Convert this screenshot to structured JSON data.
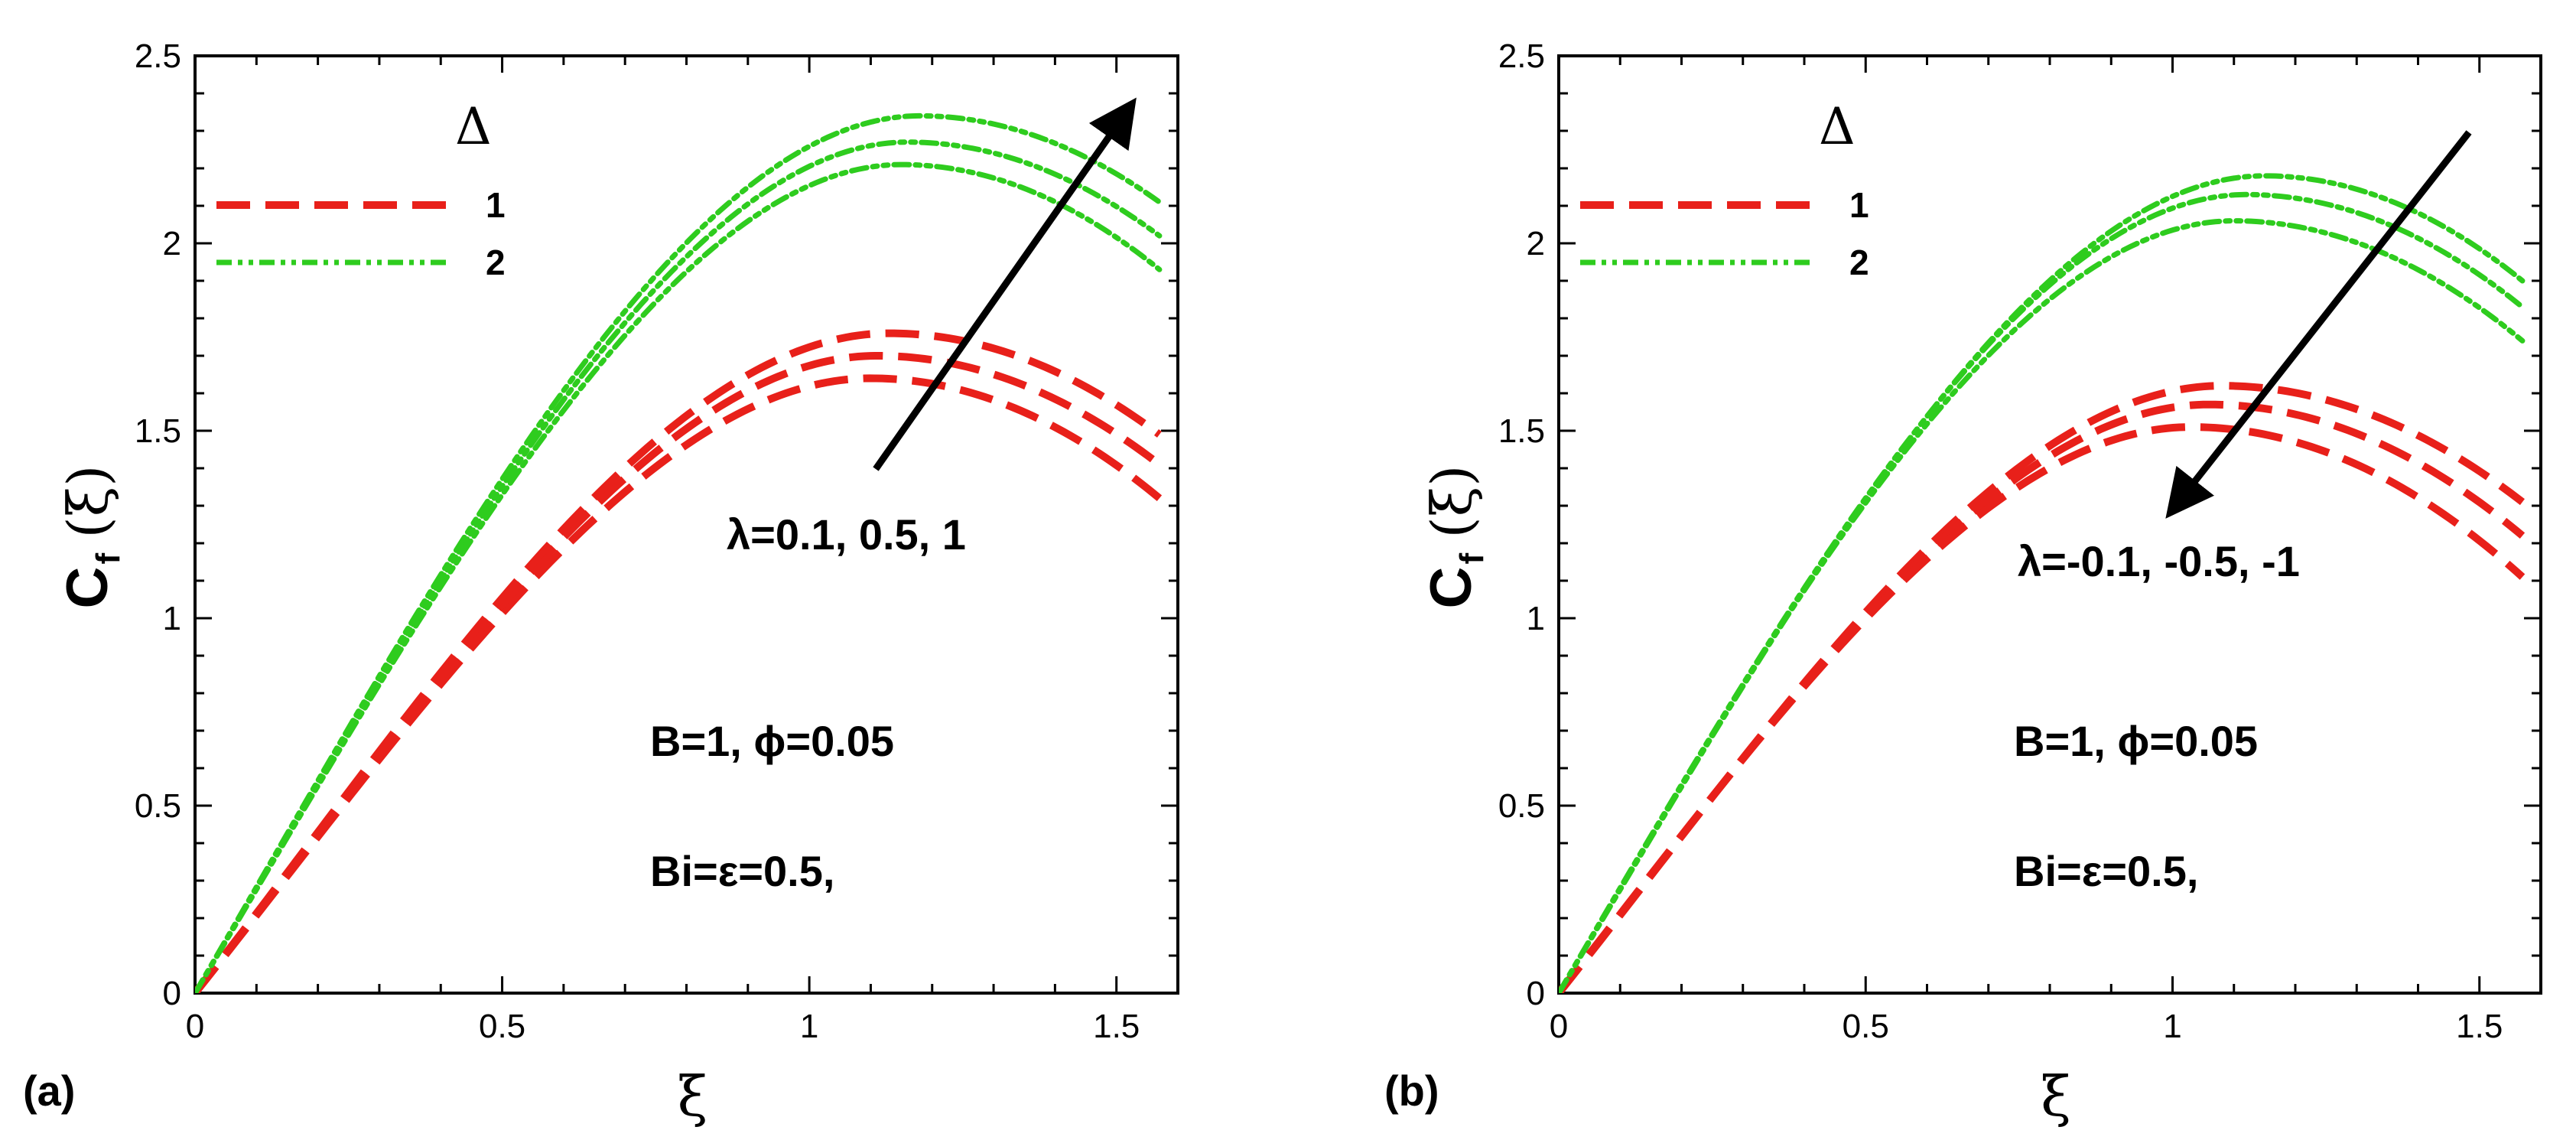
{
  "chart_data": [
    {
      "type": "line",
      "panel_label": "(a)",
      "xlabel": "ξ",
      "ylabel_main": "C",
      "ylabel_sub": "f",
      "ylabel_arg": "(ξ)",
      "xlim": [
        0,
        1.6
      ],
      "ylim": [
        0,
        2.5
      ],
      "xticks": [
        0,
        0.5,
        1,
        1.5
      ],
      "xtick_labels": [
        "0",
        "0.5",
        "1",
        "1.5"
      ],
      "yticks": [
        0,
        0.5,
        1,
        1.5,
        2,
        2.5
      ],
      "ytick_labels": [
        "0",
        "0.5",
        "1",
        "1.5",
        "2",
        "2.5"
      ],
      "legend": {
        "title": "Δ",
        "placement": "top-left",
        "entries": [
          {
            "label": "1",
            "style": "dashed",
            "color": "#e8201a"
          },
          {
            "label": "2",
            "style": "dash-dot-dot",
            "color": "#2ecc1e"
          }
        ]
      },
      "annotations": {
        "arrow_text": "λ=0.1, 0.5, 1",
        "arrow_direction": "up",
        "param_line1": "B=1, ϕ=0.05",
        "param_line2": "Bi=ε=0.5,"
      },
      "series": [
        {
          "name": "Δ=1, λ=0.1",
          "group": "1",
          "peak": 1.64,
          "peak_x": 1.1,
          "end": 1.32
        },
        {
          "name": "Δ=1, λ=0.5",
          "group": "1",
          "peak": 1.7,
          "peak_x": 1.11,
          "end": 1.41
        },
        {
          "name": "Δ=1, λ=1",
          "group": "1",
          "peak": 1.76,
          "peak_x": 1.13,
          "end": 1.49
        },
        {
          "name": "Δ=2, λ=0.1",
          "group": "2",
          "peak": 2.21,
          "peak_x": 1.15,
          "end": 1.93
        },
        {
          "name": "Δ=2, λ=0.5",
          "group": "2",
          "peak": 2.27,
          "peak_x": 1.16,
          "end": 2.02
        },
        {
          "name": "Δ=2, λ=1",
          "group": "2",
          "peak": 2.34,
          "peak_x": 1.18,
          "end": 2.11
        }
      ]
    },
    {
      "type": "line",
      "panel_label": "(b)",
      "xlabel": "ξ",
      "ylabel_main": "C",
      "ylabel_sub": "f",
      "ylabel_arg": "(ξ)",
      "xlim": [
        0,
        1.6
      ],
      "ylim": [
        0,
        2.5
      ],
      "xticks": [
        0,
        0.5,
        1,
        1.5
      ],
      "xtick_labels": [
        "0",
        "0.5",
        "1",
        "1.5"
      ],
      "yticks": [
        0,
        0.5,
        1,
        1.5,
        2,
        2.5
      ],
      "ytick_labels": [
        "0",
        "0.5",
        "1",
        "1.5",
        "2",
        "2.5"
      ],
      "legend": {
        "title": "Δ",
        "placement": "top-left",
        "entries": [
          {
            "label": "1",
            "style": "dashed",
            "color": "#e8201a"
          },
          {
            "label": "2",
            "style": "dash-dot-dot",
            "color": "#2ecc1e"
          }
        ]
      },
      "annotations": {
        "arrow_text": "λ=-0.1, -0.5, -1",
        "arrow_direction": "down",
        "param_line1": "B=1, ϕ=0.05",
        "param_line2": "Bi=ε=0.5,"
      },
      "series": [
        {
          "name": "Δ=1, λ=-0.1",
          "group": "1",
          "peak": 1.62,
          "peak_x": 1.08,
          "end": 1.31
        },
        {
          "name": "Δ=1, λ=-0.5",
          "group": "1",
          "peak": 1.57,
          "peak_x": 1.06,
          "end": 1.22
        },
        {
          "name": "Δ=1, λ=-1",
          "group": "1",
          "peak": 1.51,
          "peak_x": 1.03,
          "end": 1.11
        },
        {
          "name": "Δ=2, λ=-0.1",
          "group": "2",
          "peak": 2.18,
          "peak_x": 1.15,
          "end": 1.9
        },
        {
          "name": "Δ=2, λ=-0.5",
          "group": "2",
          "peak": 2.13,
          "peak_x": 1.12,
          "end": 1.83
        },
        {
          "name": "Δ=2, λ=-1",
          "group": "2",
          "peak": 2.06,
          "peak_x": 1.1,
          "end": 1.74
        }
      ]
    }
  ]
}
